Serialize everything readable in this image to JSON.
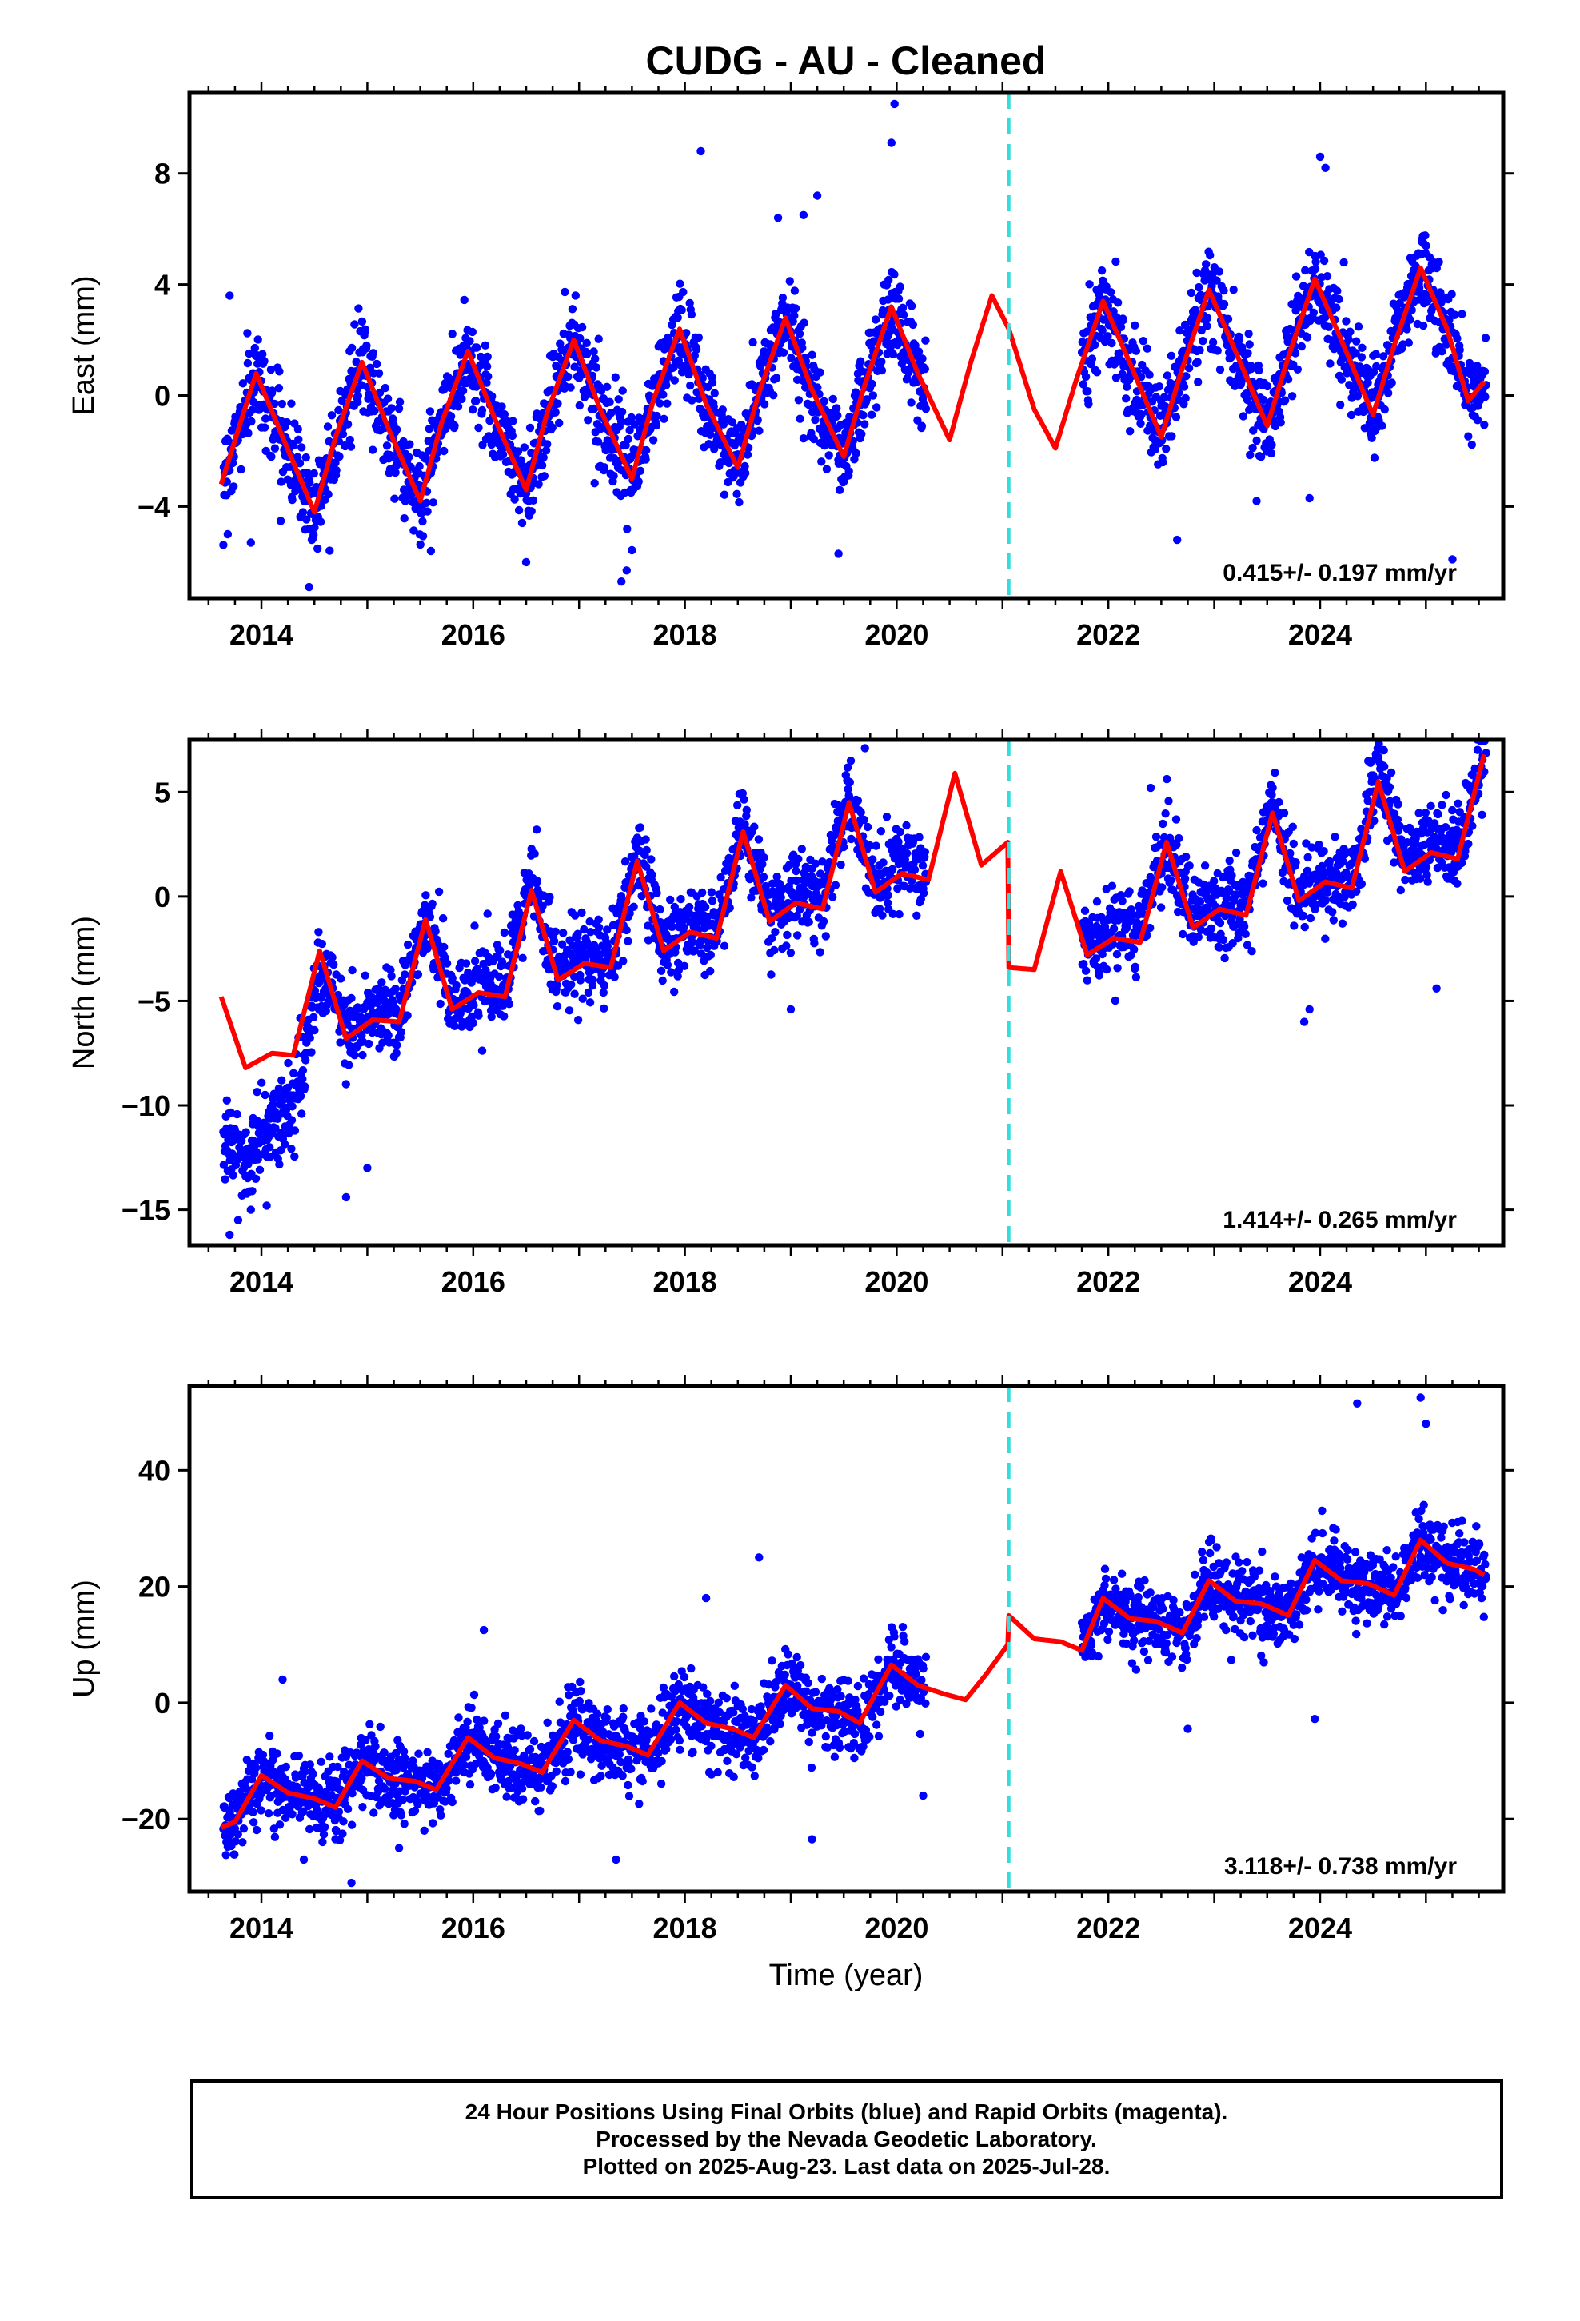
{
  "figure": {
    "title": "CUDG  - AU - Cleaned",
    "xlabel": "Time (year)",
    "footer": {
      "lines": [
        "24 Hour Positions Using Final Orbits (blue) and Rapid Orbits (magenta).",
        "Processed by the Nevada Geodetic Laboratory.",
        "Plotted on 2025-Aug-23. Last data on 2025-Jul-28."
      ]
    },
    "colors": {
      "data": "#0000ff",
      "model": "#ff0000",
      "antenna_change": "#33dddd",
      "frame": "#000000"
    }
  },
  "chart_data": [
    {
      "type": "scatter",
      "name": "east",
      "ylabel": "East (mm)",
      "xlim": [
        2013.32,
        2025.73
      ],
      "ylim": [
        -7.3,
        10.9
      ],
      "yticks": [
        -4,
        0,
        4,
        8
      ],
      "xticks": [
        2014,
        2016,
        2018,
        2020,
        2022,
        2024
      ],
      "rate_label": "0.415+/- 0.197 mm/yr",
      "antenna_change_x": 2021.06,
      "data_gap": [
        2020.28,
        2021.75
      ],
      "model": {
        "x": [
          2013.62,
          2013.8,
          2013.95,
          2014.2,
          2014.5,
          2014.7,
          2014.95,
          2015.2,
          2015.5,
          2015.7,
          2015.95,
          2016.2,
          2016.5,
          2016.7,
          2016.95,
          2017.2,
          2017.5,
          2017.7,
          2017.95,
          2018.2,
          2018.5,
          2018.7,
          2018.95,
          2019.2,
          2019.5,
          2019.7,
          2019.95,
          2020.2,
          2020.5,
          2020.7,
          2020.9,
          2021.06,
          2021.3,
          2021.5,
          2021.7,
          2021.95,
          2022.2,
          2022.5,
          2022.7,
          2022.95,
          2023.2,
          2023.5,
          2023.7,
          2023.95,
          2024.2,
          2024.5,
          2024.7,
          2024.95,
          2025.2,
          2025.4,
          2025.55
        ],
        "y": [
          -3.2,
          -1.0,
          0.8,
          -1.5,
          -4.2,
          -1.5,
          1.2,
          -1.2,
          -3.8,
          -1.0,
          1.6,
          -0.8,
          -3.4,
          -0.6,
          2.0,
          -0.5,
          -3.0,
          -0.2,
          2.4,
          -0.3,
          -2.6,
          0.1,
          2.8,
          0.2,
          -2.2,
          0.4,
          3.2,
          0.8,
          -1.6,
          1.2,
          3.6,
          2.4,
          -0.5,
          -1.9,
          0.6,
          3.4,
          1.2,
          -1.5,
          1.0,
          3.8,
          1.6,
          -1.1,
          1.4,
          4.2,
          2.0,
          -0.7,
          1.8,
          4.6,
          2.4,
          -0.2,
          0.5
        ]
      },
      "outliers": {
        "x": [
          2019.95,
          2019.98,
          2018.15,
          2018.88,
          2019.25,
          2019.12,
          2024.0,
          2024.05,
          2013.7,
          2013.9,
          2014.45,
          2015.6,
          2016.5,
          2017.4,
          2017.45,
          2019.45,
          2022.65,
          2023.4,
          2023.9,
          2025.25
        ],
        "y": [
          9.1,
          10.5,
          8.8,
          6.4,
          7.2,
          6.5,
          8.6,
          8.2,
          3.6,
          -5.3,
          -6.9,
          -5.6,
          -6.0,
          -6.7,
          -6.3,
          -5.7,
          -5.2,
          -3.8,
          -3.7,
          -5.9
        ]
      }
    },
    {
      "type": "scatter",
      "name": "north",
      "ylabel": "North (mm)",
      "xlim": [
        2013.32,
        2025.73
      ],
      "ylim": [
        -16.7,
        7.5
      ],
      "yticks": [
        -15,
        -10,
        -5,
        0,
        5
      ],
      "xticks": [
        2014,
        2016,
        2018,
        2020,
        2022,
        2024
      ],
      "rate_label": "1.414+/- 0.265 mm/yr",
      "antenna_change_x": 2021.06,
      "data_gap": [
        2020.28,
        2021.75
      ],
      "model": {
        "x": [
          2013.62,
          2013.85,
          2014.1,
          2014.3,
          2014.55,
          2014.8,
          2015.05,
          2015.3,
          2015.55,
          2015.8,
          2016.05,
          2016.3,
          2016.55,
          2016.8,
          2017.05,
          2017.3,
          2017.55,
          2017.8,
          2018.05,
          2018.3,
          2018.55,
          2018.8,
          2019.05,
          2019.3,
          2019.55,
          2019.8,
          2020.05,
          2020.3,
          2020.55,
          2020.8,
          2021.05,
          2021.06,
          2021.3,
          2021.55,
          2021.8,
          2022.05,
          2022.3,
          2022.55,
          2022.8,
          2023.05,
          2023.3,
          2023.55,
          2023.8,
          2024.05,
          2024.3,
          2024.55,
          2024.8,
          2025.05,
          2025.3,
          2025.55
        ],
        "y": [
          -4.8,
          -8.2,
          -7.5,
          -7.6,
          -2.6,
          -6.8,
          -5.9,
          -6.0,
          -1.1,
          -5.4,
          -4.6,
          -4.8,
          0.3,
          -4.0,
          -3.2,
          -3.4,
          1.7,
          -2.6,
          -1.7,
          -2.0,
          3.1,
          -1.2,
          -0.3,
          -0.6,
          4.5,
          0.2,
          1.1,
          0.8,
          5.9,
          1.5,
          2.6,
          -3.4,
          -3.5,
          1.2,
          -2.8,
          -2.0,
          -2.2,
          2.6,
          -1.5,
          -0.6,
          -0.9,
          4.0,
          -0.2,
          0.7,
          0.4,
          5.5,
          1.2,
          2.1,
          1.8,
          6.8
        ]
      },
      "outliers": {
        "x": [
          2013.7,
          2013.78,
          2013.9,
          2014.05,
          2014.8,
          2015.0,
          2019.0,
          2019.7,
          2016.6,
          2022.4,
          2023.85,
          2023.9,
          2024.5,
          2025.1
        ],
        "y": [
          -16.2,
          -15.5,
          -15.0,
          -14.8,
          -14.4,
          -13.0,
          -5.4,
          7.1,
          3.2,
          5.2,
          -6.0,
          -5.4,
          5.8,
          -4.4
        ]
      }
    },
    {
      "type": "scatter",
      "name": "up",
      "ylabel": "Up (mm)",
      "xlim": [
        2013.32,
        2025.73
      ],
      "ylim": [
        -32.5,
        54.5
      ],
      "yticks": [
        -20,
        0,
        20,
        40
      ],
      "xticks": [
        2014,
        2016,
        2018,
        2020,
        2022,
        2024
      ],
      "rate_label": "3.118+/- 0.738 mm/yr",
      "antenna_change_x": 2021.06,
      "data_gap": [
        2020.28,
        2021.75
      ],
      "model": {
        "x": [
          2013.62,
          2013.75,
          2014.0,
          2014.25,
          2014.5,
          2014.7,
          2014.95,
          2015.2,
          2015.45,
          2015.65,
          2015.95,
          2016.2,
          2016.45,
          2016.65,
          2016.95,
          2017.2,
          2017.45,
          2017.65,
          2017.95,
          2018.2,
          2018.45,
          2018.65,
          2018.95,
          2019.2,
          2019.45,
          2019.65,
          2019.95,
          2020.2,
          2020.45,
          2020.65,
          2020.85,
          2021.05,
          2021.06,
          2021.3,
          2021.55,
          2021.75,
          2021.95,
          2022.2,
          2022.45,
          2022.7,
          2022.95,
          2023.2,
          2023.45,
          2023.7,
          2023.95,
          2024.2,
          2024.45,
          2024.7,
          2024.95,
          2025.2,
          2025.45,
          2025.55
        ],
        "y": [
          -21.5,
          -20.5,
          -12.5,
          -15.5,
          -16.5,
          -18.0,
          -10.0,
          -13.0,
          -13.5,
          -15.0,
          -6.0,
          -9.5,
          -10.5,
          -12.0,
          -3.0,
          -6.5,
          -7.5,
          -9.0,
          0.0,
          -3.5,
          -4.5,
          -6.0,
          3.0,
          -1.0,
          -1.5,
          -3.5,
          6.5,
          3.0,
          1.5,
          0.5,
          5.0,
          10.0,
          15.0,
          11.0,
          10.5,
          9.0,
          18.0,
          14.5,
          14.0,
          12.0,
          21.0,
          17.5,
          17.0,
          15.0,
          24.5,
          21.0,
          20.5,
          18.5,
          28.0,
          24.0,
          23.0,
          22.0
        ]
      },
      "outliers": {
        "x": [
          2014.4,
          2014.85,
          2015.3,
          2019.2,
          2018.7,
          2017.35,
          2022.75,
          2023.95,
          2024.35,
          2024.95,
          2025.0,
          2014.2,
          2016.1,
          2018.2,
          2020.25
        ],
        "y": [
          -27.0,
          -31.0,
          -25.0,
          -23.5,
          25.0,
          -27.0,
          -4.5,
          -2.8,
          51.5,
          52.5,
          48.0,
          4.0,
          12.5,
          18.0,
          -16.0
        ]
      }
    }
  ]
}
